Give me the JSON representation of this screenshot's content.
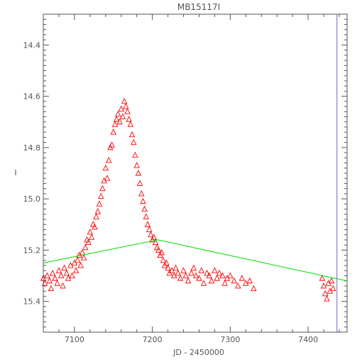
{
  "chart_data": {
    "type": "scatter",
    "title": "MB15117I",
    "xlabel": "JD - 2450000",
    "ylabel": "I",
    "xlim": [
      7060,
      7450
    ],
    "ylim": [
      15.52,
      14.28
    ],
    "y_inverted": true,
    "x_ticks": [
      7100,
      7200,
      7300,
      7400
    ],
    "x_tick_labels": [
      "7100",
      "7200",
      "7300",
      "7400"
    ],
    "y_ticks": [
      14.4,
      14.6,
      14.8,
      15.0,
      15.2,
      15.4
    ],
    "y_tick_labels": [
      "14.4",
      "14.6",
      "14.8",
      "15.0",
      "15.2",
      "15.4"
    ],
    "grid": false,
    "marker": "triangle-open",
    "colors": {
      "points": "#ff0000",
      "baseline": "#00dd00",
      "marker_line": "#6666cc",
      "axes": "#555555"
    },
    "vertical_line_x": 7437,
    "baseline": {
      "x": [
        7060,
        7207,
        7450
      ],
      "y": [
        15.25,
        15.16,
        15.32
      ]
    },
    "series": [
      {
        "x": [
          7060,
          7062,
          7065,
          7068,
          7070,
          7072,
          7075,
          7078,
          7080,
          7083,
          7085,
          7087,
          7090,
          7092,
          7095,
          7097,
          7100,
          7102,
          7104,
          7106,
          7108,
          7110,
          7112,
          7114,
          7116,
          7118,
          7120,
          7122,
          7124,
          7126,
          7128,
          7130,
          7132,
          7134,
          7136,
          7138,
          7140,
          7142,
          7144,
          7146,
          7148,
          7150,
          7152,
          7154,
          7156,
          7158,
          7160,
          7162,
          7164,
          7166,
          7168,
          7170,
          7172,
          7174,
          7176,
          7178,
          7180,
          7182,
          7184,
          7186,
          7188,
          7190,
          7192,
          7194,
          7196,
          7198,
          7200,
          7202,
          7204,
          7206,
          7208,
          7210,
          7212,
          7214,
          7216,
          7218,
          7220,
          7222,
          7225,
          7228,
          7230,
          7233,
          7236,
          7240,
          7243,
          7246,
          7250,
          7253,
          7256,
          7260,
          7263,
          7266,
          7270,
          7273,
          7276,
          7280,
          7283,
          7286,
          7290,
          7293,
          7296,
          7300,
          7305,
          7310,
          7315,
          7320,
          7325,
          7330,
          7418,
          7420,
          7422,
          7424,
          7426,
          7428,
          7430,
          7432
        ],
        "y": [
          15.31,
          15.33,
          15.3,
          15.32,
          15.35,
          15.29,
          15.31,
          15.33,
          15.28,
          15.3,
          15.34,
          15.27,
          15.29,
          15.31,
          15.26,
          15.3,
          15.25,
          15.28,
          15.24,
          15.22,
          15.26,
          15.21,
          15.23,
          15.19,
          15.16,
          15.17,
          15.13,
          15.15,
          15.1,
          15.11,
          15.07,
          15.05,
          15.02,
          14.99,
          14.96,
          14.93,
          14.88,
          14.92,
          14.85,
          14.8,
          14.79,
          14.74,
          14.71,
          14.69,
          14.67,
          14.7,
          14.65,
          14.68,
          14.62,
          14.64,
          14.66,
          14.69,
          14.71,
          14.75,
          14.78,
          14.83,
          14.87,
          14.9,
          14.94,
          14.98,
          15.01,
          15.04,
          15.07,
          15.1,
          15.12,
          15.14,
          15.16,
          15.15,
          15.17,
          15.19,
          15.2,
          15.22,
          15.21,
          15.24,
          15.26,
          15.25,
          15.27,
          15.29,
          15.28,
          15.3,
          15.27,
          15.29,
          15.31,
          15.28,
          15.3,
          15.32,
          15.29,
          15.27,
          15.3,
          15.31,
          15.28,
          15.33,
          15.29,
          15.3,
          15.32,
          15.28,
          15.31,
          15.29,
          15.3,
          15.33,
          15.31,
          15.3,
          15.32,
          15.34,
          15.31,
          15.33,
          15.32,
          15.35,
          15.31,
          15.34,
          15.37,
          15.39,
          15.33,
          15.36,
          15.32,
          15.35
        ]
      }
    ]
  }
}
